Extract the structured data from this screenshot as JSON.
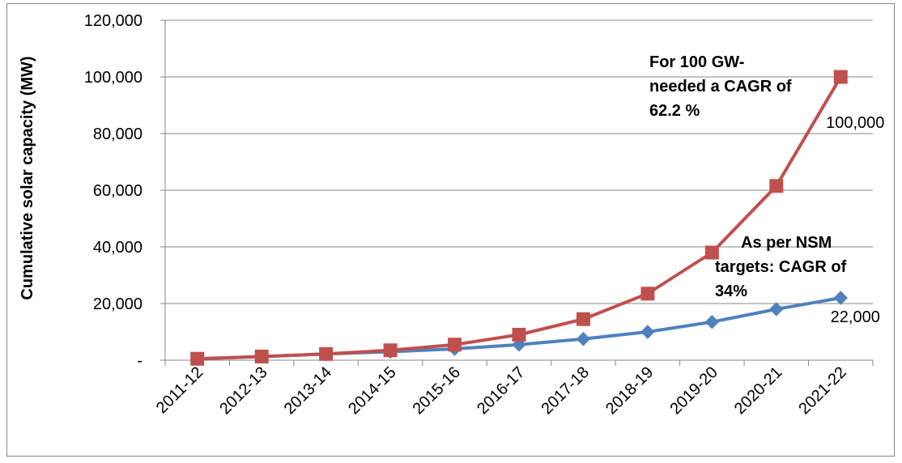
{
  "chart_data": {
    "type": "line",
    "title": "",
    "xlabel": "",
    "ylabel": "Cumulative solar capacity (MW)",
    "ylim": [
      0,
      120000
    ],
    "y_ticks": [
      {
        "value": 0,
        "label": "-"
      },
      {
        "value": 20000,
        "label": "20,000"
      },
      {
        "value": 40000,
        "label": "40,000"
      },
      {
        "value": 60000,
        "label": "60,000"
      },
      {
        "value": 80000,
        "label": "80,000"
      },
      {
        "value": 100000,
        "label": "100,000"
      },
      {
        "value": 120000,
        "label": "120,000"
      }
    ],
    "grid": "horizontal",
    "legend": "none",
    "categories": [
      "2011-12",
      "2012-13",
      "2013-14",
      "2014-15",
      "2015-16",
      "2016-17",
      "2017-18",
      "2018-19",
      "2019-20",
      "2020-21",
      "2021-22"
    ],
    "series": [
      {
        "color": "#4f81bd",
        "marker": "diamond",
        "values": [
          500,
          1300,
          2200,
          3000,
          4000,
          5500,
          7500,
          10000,
          13500,
          18000,
          22000
        ]
      },
      {
        "color": "#c0504d",
        "marker": "square",
        "values": [
          500,
          1300,
          2200,
          3500,
          5500,
          9000,
          14500,
          23500,
          38000,
          61500,
          100000
        ]
      }
    ],
    "data_labels": [
      {
        "text": "100,000",
        "series": 1,
        "index": 10
      },
      {
        "text": "22,000",
        "series": 0,
        "index": 10
      }
    ],
    "annotations": [
      {
        "lines": [
          "For 100 GW-",
          "needed a CAGR of",
          "62.2 %"
        ],
        "near_series": 1
      },
      {
        "lines": [
          "As per NSM",
          "targets: CAGR of",
          "34%"
        ],
        "near_series": 0
      }
    ]
  },
  "colors": {
    "axis": "#878787",
    "grid": "#878787",
    "frame": "#878787"
  }
}
